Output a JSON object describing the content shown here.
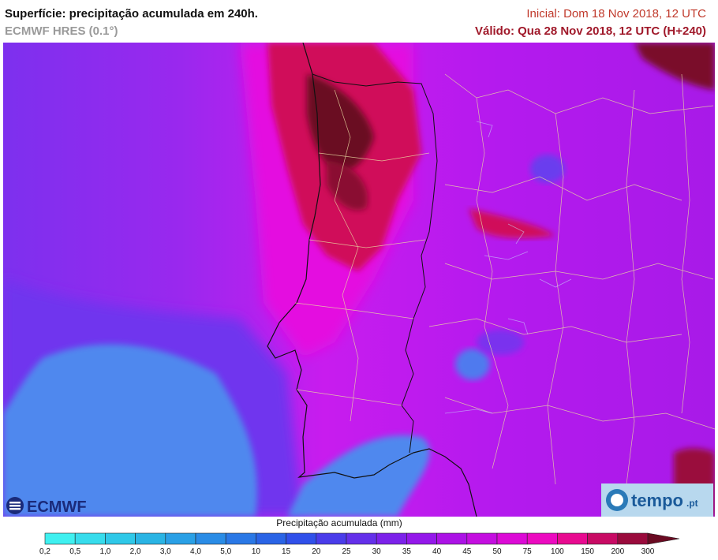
{
  "header": {
    "title": "Superfície: precipitação acumulada em 240h.",
    "model": "ECMWF HRES (0.1°)",
    "initial": "Inicial: Dom 18 Nov 2018, 12 UTC",
    "valid": "Válido: Qua 28 Nov 2018, 12 UTC (H+240)"
  },
  "logos": {
    "ecmwf": "ECMWF",
    "tempo": "tempo",
    "tempo_suffix": ".pt"
  },
  "legend": {
    "title": "Precipitação acumulada (mm)",
    "ticks": [
      "0,2",
      "0,5",
      "1,0",
      "2,0",
      "3,0",
      "4,0",
      "5,0",
      "10",
      "15",
      "20",
      "25",
      "30",
      "35",
      "40",
      "45",
      "50",
      "75",
      "100",
      "150",
      "200",
      "300"
    ],
    "colors": [
      "#3ff0f0",
      "#37dcec",
      "#2fc8e8",
      "#2ab4e4",
      "#2aa0e6",
      "#2a8ce6",
      "#2a78e6",
      "#2a64e6",
      "#3050ea",
      "#4a3cea",
      "#6430ea",
      "#7c22ea",
      "#9418ea",
      "#ac12e6",
      "#c40ee0",
      "#dc0ad6",
      "#ec0ac0",
      "#e80a90",
      "#c80a64",
      "#9a0a3c",
      "#6a0a22"
    ],
    "palette": {
      "ocean_low": "#4f88ee",
      "ocean_mid": "#5a3aee",
      "ocean_high": "#8a2cf0",
      "land": "#b81af0",
      "heavy": "#d00a5a",
      "extreme": "#6a0a22"
    }
  }
}
